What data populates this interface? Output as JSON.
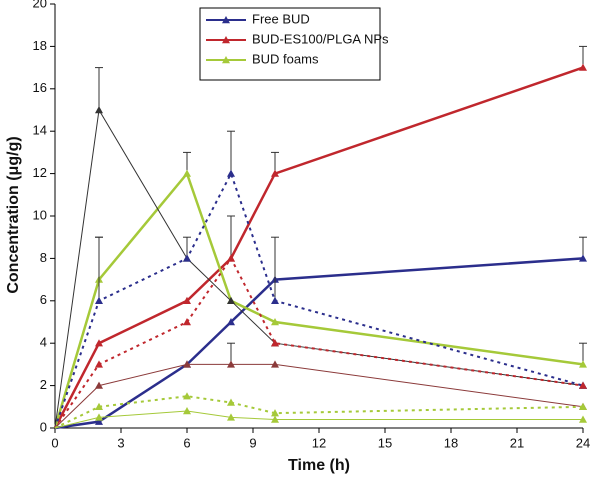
{
  "chart_data": {
    "type": "line",
    "x_label": "Time (h)",
    "y_label": "Concentration (μg/g)",
    "xlim": [
      0,
      24
    ],
    "xticks": [
      0,
      3,
      6,
      9,
      12,
      15,
      18,
      21,
      24
    ],
    "ylim": [
      0,
      20
    ],
    "yticks": [
      0,
      2,
      4,
      6,
      8,
      10,
      12,
      14,
      16,
      18,
      20
    ],
    "x": [
      0,
      2,
      6,
      8,
      10,
      24
    ],
    "series": [
      {
        "name": "Free BUD",
        "color": "#2b2e8c",
        "width": 2.5,
        "dashed": false,
        "values": [
          0,
          0.3,
          3,
          5,
          7,
          8
        ],
        "errors": [
          null,
          null,
          null,
          null,
          null,
          1
        ]
      },
      {
        "name": "BUD-ES100/PLGA NPs",
        "color": "#c0272d",
        "width": 2.5,
        "dashed": false,
        "values": [
          0,
          4,
          6,
          8,
          12,
          17
        ],
        "errors": [
          null,
          null,
          null,
          null,
          1,
          1
        ]
      },
      {
        "name": "BUD foams",
        "color": "#a5c939",
        "width": 2.5,
        "dashed": false,
        "values": [
          0,
          7,
          12,
          6,
          5,
          3
        ],
        "errors": [
          null,
          2,
          1,
          null,
          null,
          1
        ]
      },
      {
        "color": "#333333",
        "width": 1,
        "dashed": false,
        "values": [
          0,
          15,
          8,
          6,
          4,
          2
        ],
        "errors": [
          null,
          2,
          null,
          null,
          null,
          null
        ]
      },
      {
        "color": "#2b2e8c",
        "width": 2,
        "dashed": true,
        "values": [
          0,
          6,
          8,
          12,
          6,
          2
        ],
        "errors": [
          null,
          3,
          1,
          2,
          3,
          null
        ]
      },
      {
        "color": "#c0272d",
        "width": 2,
        "dashed": true,
        "values": [
          0,
          3,
          5,
          8,
          4,
          2
        ],
        "errors": [
          null,
          null,
          null,
          2,
          null,
          null
        ]
      },
      {
        "color": "#8b3a3a",
        "width": 1,
        "dashed": false,
        "values": [
          0,
          2,
          3,
          3,
          3,
          1
        ],
        "errors": [
          null,
          null,
          null,
          1,
          null,
          null
        ]
      },
      {
        "color": "#a5c939",
        "width": 2,
        "dashed": true,
        "values": [
          0,
          1,
          1.5,
          1.2,
          0.7,
          1
        ],
        "errors": [
          null,
          null,
          null,
          null,
          null,
          null
        ]
      },
      {
        "color": "#a5c939",
        "width": 1,
        "dashed": false,
        "values": [
          0,
          0.5,
          0.8,
          0.5,
          0.4,
          0.4
        ],
        "errors": [
          null,
          null,
          null,
          null,
          null,
          null
        ]
      }
    ]
  }
}
